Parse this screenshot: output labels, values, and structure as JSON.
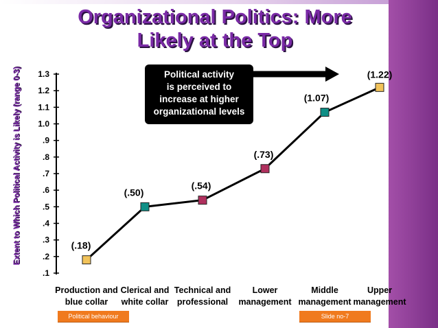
{
  "slide": {
    "title_line1": "Organizational Politics: More",
    "title_line2": "Likely at the Top",
    "footer_left": "Political behaviour",
    "footer_right": "Slide no-7"
  },
  "theme": {
    "accent_purple": "#7a2aa6",
    "footer_orange": "#f07a1e"
  },
  "chart_data": {
    "type": "line",
    "title": "Organizational Politics: More Likely at the Top",
    "ylabel": "Extent to Which Political Activity is Likely (range 0-3)",
    "xlabel": "",
    "yticks": [
      ".1",
      ".2",
      ".3",
      ".4",
      ".5",
      ".6",
      ".7",
      ".8",
      ".9",
      "1.0",
      "1.1",
      "1.2",
      "1.3"
    ],
    "ylim": [
      0.1,
      1.3
    ],
    "categories": [
      [
        "Production and",
        "blue collar"
      ],
      [
        "Clerical and",
        "white collar"
      ],
      [
        "Technical and",
        "professional"
      ],
      [
        "Lower",
        "management"
      ],
      [
        "Middle",
        "management"
      ],
      [
        "Upper",
        "management"
      ]
    ],
    "values": [
      0.18,
      0.5,
      0.54,
      0.73,
      1.07,
      1.22
    ],
    "data_labels": [
      "(.18)",
      "(.50)",
      "(.54)",
      "(.73)",
      "(1.07)",
      "(1.22)"
    ],
    "marker_colors": [
      "#f2c35a",
      "#0e8f86",
      "#b0305e",
      "#b0305e",
      "#0e8f86",
      "#f2c35a"
    ],
    "annotation": {
      "lines": [
        "Political  activity",
        "is perceived to",
        "increase at higher",
        "organizational levels"
      ]
    },
    "grid": false
  }
}
